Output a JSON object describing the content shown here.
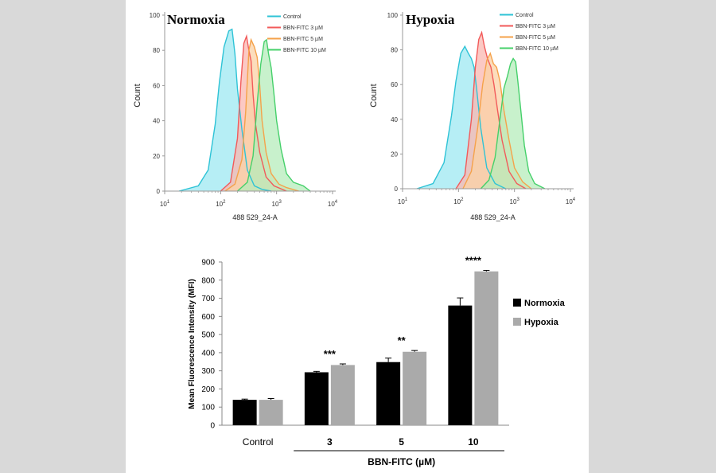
{
  "chart_data": [
    {
      "type": "area",
      "title": "Normoxia",
      "xlabel": "488 529_24-A",
      "ylabel": "Count",
      "xscale": "log",
      "xlim": [
        10,
        10000
      ],
      "ylim": [
        0,
        100
      ],
      "yticks": [
        "0",
        "20",
        "40",
        "60",
        "80",
        "100"
      ],
      "xticks": [
        {
          "base": "10",
          "exp": "1"
        },
        {
          "base": "10",
          "exp": "2"
        },
        {
          "base": "10",
          "exp": "3"
        },
        {
          "base": "10",
          "exp": "4"
        }
      ],
      "legend": "top-right",
      "series": [
        {
          "name": "Control",
          "color": "#2ec3d6",
          "fill": "#9ee8f1",
          "x": [
            18,
            40,
            60,
            80,
            95,
            115,
            140,
            160,
            180,
            200,
            240,
            300,
            400,
            550,
            800
          ],
          "y": [
            0,
            3,
            12,
            38,
            62,
            82,
            91,
            92,
            78,
            58,
            35,
            12,
            3,
            1,
            0
          ]
        },
        {
          "name": "BBN-FITC 3 µM",
          "color": "#f25a5a",
          "fill": "#f9b7b0",
          "x": [
            100,
            150,
            200,
            230,
            260,
            290,
            320,
            350,
            380,
            420,
            500,
            650,
            900,
            1500
          ],
          "y": [
            0,
            5,
            30,
            62,
            84,
            88,
            80,
            74,
            55,
            38,
            22,
            8,
            3,
            0
          ]
        },
        {
          "name": "BBN-FITC 5 µM",
          "color": "#f5a24a",
          "fill": "#fbd2a5",
          "x": [
            120,
            180,
            240,
            280,
            320,
            350,
            400,
            450,
            500,
            550,
            650,
            800,
            1100,
            1500,
            2500
          ],
          "y": [
            0,
            4,
            18,
            45,
            80,
            86,
            82,
            76,
            60,
            40,
            22,
            10,
            4,
            2,
            0
          ]
        },
        {
          "name": "BBN-FITC 10 µM",
          "color": "#45d06a",
          "fill": "#b5ecbb",
          "x": [
            200,
            300,
            380,
            450,
            520,
            600,
            660,
            720,
            800,
            900,
            1000,
            1200,
            1500,
            2000,
            3000,
            4000
          ],
          "y": [
            0,
            5,
            20,
            50,
            72,
            85,
            86,
            78,
            70,
            55,
            40,
            24,
            10,
            5,
            3,
            0
          ]
        }
      ]
    },
    {
      "type": "area",
      "title": "Hypoxia",
      "xlabel": "488 529_24-A",
      "ylabel": "Count",
      "xscale": "log",
      "xlim": [
        10,
        10000
      ],
      "ylim": [
        0,
        100
      ],
      "yticks": [
        "0",
        "20",
        "40",
        "60",
        "80",
        "100"
      ],
      "xticks": [
        {
          "base": "10",
          "exp": "1"
        },
        {
          "base": "10",
          "exp": "2"
        },
        {
          "base": "10",
          "exp": "3"
        },
        {
          "base": "10",
          "exp": "4"
        }
      ],
      "legend": "top-right",
      "series": [
        {
          "name": "Control",
          "color": "#2ec3d6",
          "fill": "#9ee8f1",
          "x": [
            18,
            35,
            55,
            75,
            90,
            110,
            130,
            150,
            170,
            190,
            210,
            250,
            320,
            450,
            700
          ],
          "y": [
            0,
            3,
            15,
            42,
            62,
            78,
            82,
            78,
            75,
            70,
            58,
            35,
            12,
            3,
            0
          ]
        },
        {
          "name": "BBN-FITC 3 µM",
          "color": "#f25a5a",
          "fill": "#f9b7b0",
          "x": [
            90,
            130,
            170,
            200,
            230,
            260,
            290,
            330,
            380,
            430,
            500,
            600,
            800,
            1100,
            1600
          ],
          "y": [
            0,
            8,
            40,
            70,
            86,
            90,
            82,
            75,
            70,
            60,
            45,
            28,
            10,
            3,
            0
          ]
        },
        {
          "name": "BBN-FITC 5 µM",
          "color": "#f5a24a",
          "fill": "#fbd2a5",
          "x": [
            120,
            170,
            220,
            270,
            320,
            370,
            420,
            480,
            550,
            650,
            800,
            1000,
            1400,
            2000
          ],
          "y": [
            0,
            10,
            35,
            60,
            74,
            78,
            72,
            70,
            62,
            45,
            28,
            12,
            4,
            0
          ]
        },
        {
          "name": "BBN-FITC 10 µM",
          "color": "#45d06a",
          "fill": "#b5ecbb",
          "x": [
            250,
            350,
            450,
            550,
            650,
            750,
            850,
            950,
            1050,
            1150,
            1300,
            1500,
            1800,
            2300,
            3500
          ],
          "y": [
            0,
            5,
            18,
            40,
            58,
            65,
            72,
            75,
            73,
            62,
            45,
            25,
            10,
            3,
            0
          ]
        }
      ]
    },
    {
      "type": "bar",
      "title": "",
      "xlabel": "BBN-FITC (µM)",
      "ylabel": "Mean Fluorescence Intensity (MFI)",
      "ylim": [
        0,
        900
      ],
      "yticks": [
        "0",
        "100",
        "200",
        "300",
        "400",
        "500",
        "600",
        "700",
        "800",
        "900"
      ],
      "categories": [
        "Control",
        "3",
        "5",
        "10"
      ],
      "legend": "right",
      "series": [
        {
          "name": "Normoxia",
          "color": "#000000",
          "values": [
            140,
            292,
            348,
            660
          ],
          "errors": [
            4,
            5,
            22,
            42
          ]
        },
        {
          "name": "Hypoxia",
          "color": "#aaaaaa",
          "values": [
            140,
            332,
            405,
            848
          ],
          "errors": [
            7,
            6,
            7,
            6
          ]
        }
      ],
      "annotations": [
        "",
        "***",
        "**",
        "****"
      ]
    }
  ]
}
